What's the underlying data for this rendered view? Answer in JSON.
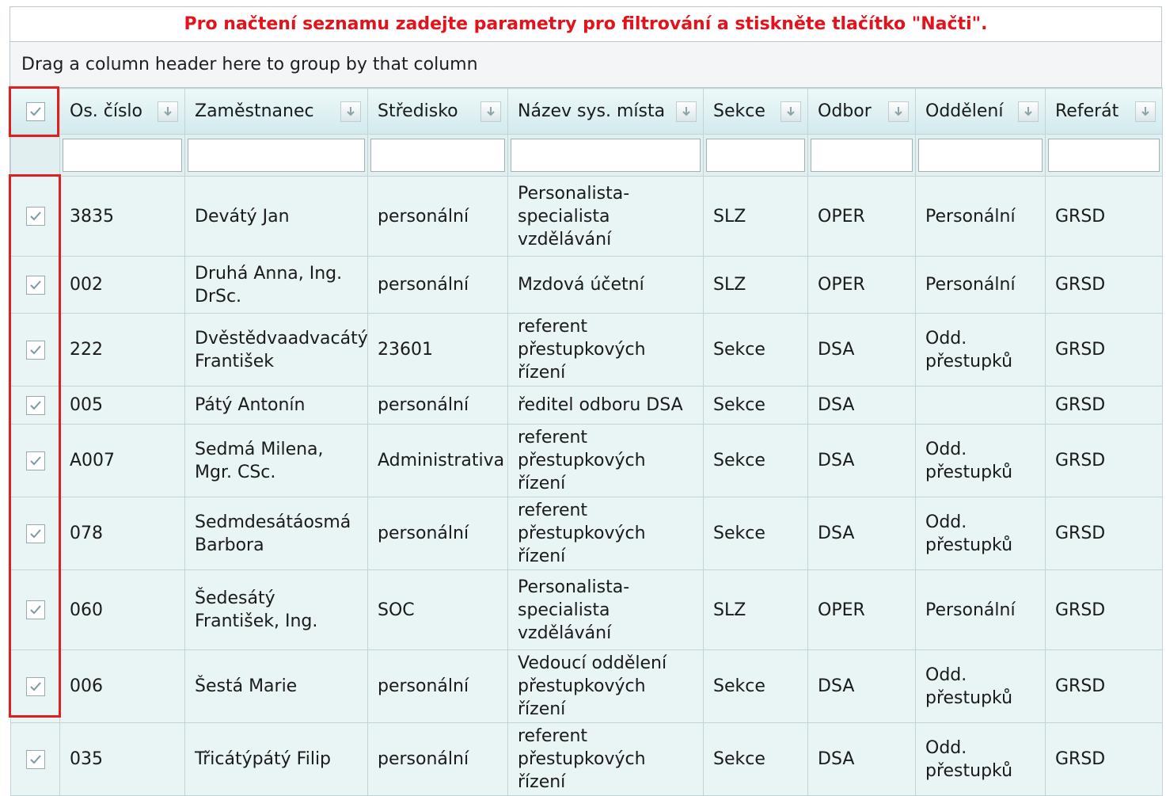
{
  "notice": "Pro načtení seznamu zadejte parametry pro filtrování a stiskněte tlačítko \"Načti\".",
  "group_panel": "Drag a column header here to group by that column",
  "columns": [
    "Os. číslo",
    "Zaměstnanec",
    "Středisko",
    "Název sys. místa",
    "Sekce",
    "Odbor",
    "Oddělení",
    "Referát"
  ],
  "rows": [
    {
      "checked": true,
      "os_cislo": "3835",
      "zamestnanec": "Devátý Jan",
      "stredisko": "personální",
      "nazev": "Personalista-specialista vzdělávání",
      "sekce": "SLZ",
      "odbor": "OPER",
      "oddeleni": "Personální",
      "referat": "GRSD"
    },
    {
      "checked": true,
      "os_cislo": "002",
      "zamestnanec": "Druhá Anna, Ing. DrSc.",
      "stredisko": "personální",
      "nazev": "Mzdová účetní",
      "sekce": "SLZ",
      "odbor": "OPER",
      "oddeleni": "Personální",
      "referat": "GRSD"
    },
    {
      "checked": true,
      "os_cislo": "222",
      "zamestnanec": "Dvěstědvaadvacátý František",
      "stredisko": "23601",
      "nazev": "referent přestupkových řízení",
      "sekce": "Sekce",
      "odbor": "DSA",
      "oddeleni": "Odd. přestupků",
      "referat": "GRSD"
    },
    {
      "checked": true,
      "os_cislo": "005",
      "zamestnanec": "Pátý Antonín",
      "stredisko": "personální",
      "nazev": "ředitel odboru DSA",
      "sekce": "Sekce",
      "odbor": "DSA",
      "oddeleni": "",
      "referat": "GRSD"
    },
    {
      "checked": true,
      "os_cislo": "A007",
      "zamestnanec": "Sedmá Milena, Mgr. CSc.",
      "stredisko": "Administrativa",
      "nazev": "referent přestupkových řízení",
      "sekce": "Sekce",
      "odbor": "DSA",
      "oddeleni": "Odd. přestupků",
      "referat": "GRSD"
    },
    {
      "checked": true,
      "os_cislo": "078",
      "zamestnanec": "Sedmdesátáosmá Barbora",
      "stredisko": "personální",
      "nazev": "referent přestupkových řízení",
      "sekce": "Sekce",
      "odbor": "DSA",
      "oddeleni": "Odd. přestupků",
      "referat": "GRSD"
    },
    {
      "checked": true,
      "os_cislo": "060",
      "zamestnanec": "Šedesátý František, Ing.",
      "stredisko": "SOC",
      "nazev": "Personalista-specialista vzdělávání",
      "sekce": "SLZ",
      "odbor": "OPER",
      "oddeleni": "Personální",
      "referat": "GRSD"
    },
    {
      "checked": true,
      "os_cislo": "006",
      "zamestnanec": "Šestá Marie",
      "stredisko": "personální",
      "nazev": "Vedoucí oddělení přestupkových řízení",
      "sekce": "Sekce",
      "odbor": "DSA",
      "oddeleni": "Odd. přestupků",
      "referat": "GRSD"
    },
    {
      "checked": true,
      "os_cislo": "035",
      "zamestnanec": "Třicátýpátý Filip",
      "stredisko": "personální",
      "nazev": "referent přestupkových řízení",
      "sekce": "Sekce",
      "odbor": "DSA",
      "oddeleni": "Odd. přestupků",
      "referat": "GRSD"
    }
  ],
  "colors": {
    "notice": "#e3121b",
    "highlight": "#e02020",
    "row_bg": "#e9f4f5"
  },
  "icons": {
    "sort": "sort-arrow-down-icon",
    "check": "checkmark-icon"
  }
}
